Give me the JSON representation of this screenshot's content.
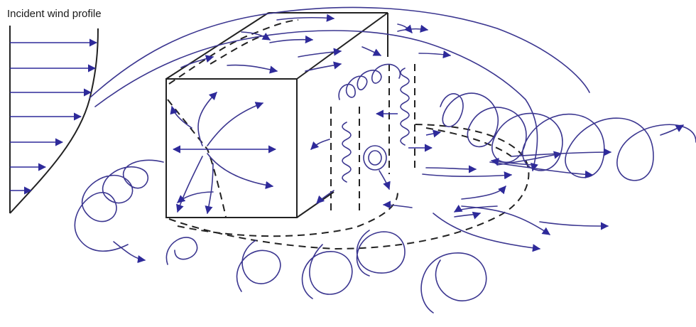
{
  "diagram": {
    "label": "Incident wind profile",
    "colors": {
      "flow": "#3b3690",
      "arrow": "#2e2a9a",
      "outline": "#222222"
    },
    "icons": [
      "arrow-icon"
    ]
  }
}
